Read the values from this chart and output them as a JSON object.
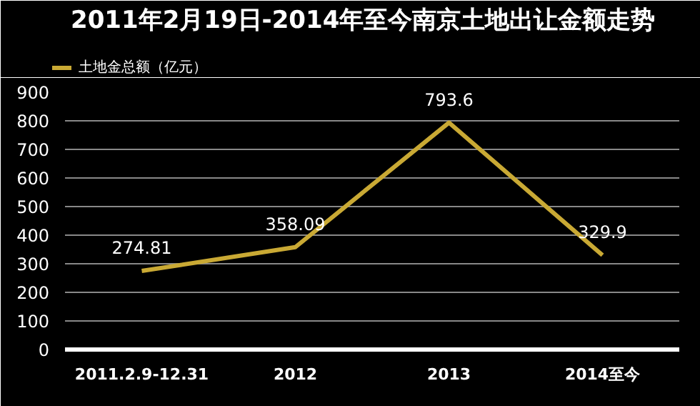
{
  "chart_data": {
    "type": "line",
    "title": "2011年2月19日-2014年至今南京土地出让金额走势",
    "categories": [
      "2011.2.9-12.31",
      "2012",
      "2013",
      "2014至今"
    ],
    "series": [
      {
        "name": "土地金总额（亿元）",
        "color": "#c9a934",
        "values": [
          274.81,
          358.09,
          793.6,
          329.9
        ]
      }
    ],
    "ylim": [
      0,
      900
    ],
    "yticks": [
      0,
      100,
      200,
      300,
      400,
      500,
      600,
      700,
      800,
      900
    ],
    "grid": "y",
    "legend": "top left",
    "data_labels": true,
    "marker": "none",
    "line_style": "solid"
  }
}
